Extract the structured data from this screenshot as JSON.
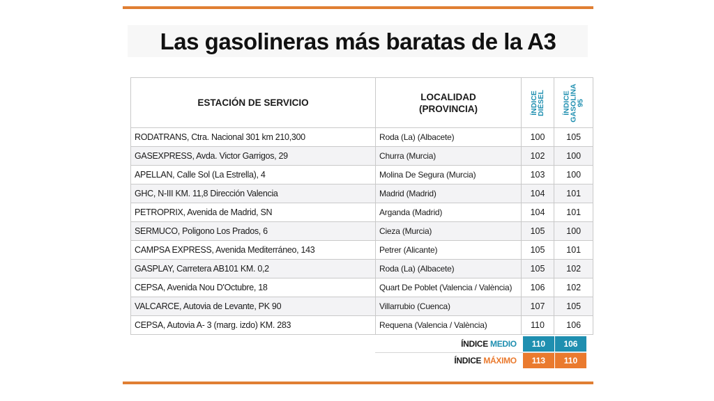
{
  "title": "Las gasolineras más baratas de la A3",
  "colors": {
    "rule": "#e07f33",
    "blue_accent": "#1f8fb0",
    "orange_accent": "#ea7a2e"
  },
  "table": {
    "headers": {
      "station": "ESTACIÓN DE SERVICIO",
      "location_line1": "LOCALIDAD",
      "location_line2": "(PROVINCIA)",
      "diesel_line1": "ÍNDICE",
      "diesel_line2": "DIÉSEL",
      "gasolina_line1": "ÍNDICE",
      "gasolina_line2": "GASOLINA",
      "gasolina_line3": "95"
    },
    "rows": [
      {
        "station": "RODATRANS, Ctra. Nacional 301 km 210,300",
        "location": "Roda (La) (Albacete)",
        "diesel": "100",
        "gasolina": "105"
      },
      {
        "station": "GASEXPRESS, Avda. Victor Garrigos, 29",
        "location": "Churra (Murcia)",
        "diesel": "102",
        "gasolina": "100"
      },
      {
        "station": "APELLAN, Calle Sol (La Estrella), 4",
        "location": "Molina De Segura (Murcia)",
        "diesel": "103",
        "gasolina": "100"
      },
      {
        "station": "GHC, N-III KM. 11,8 Dirección Valencia",
        "location": "Madrid (Madrid)",
        "diesel": "104",
        "gasolina": "101"
      },
      {
        "station": "PETROPRIX, Avenida de Madrid, SN",
        "location": "Arganda (Madrid)",
        "diesel": "104",
        "gasolina": "101"
      },
      {
        "station": "SERMUCO, Poligono Los Prados, 6",
        "location": "Cieza (Murcia)",
        "diesel": "105",
        "gasolina": "100"
      },
      {
        "station": "CAMPSA EXPRESS, Avenida Mediterráneo, 143",
        "location": "Petrer (Alicante)",
        "diesel": "105",
        "gasolina": "101"
      },
      {
        "station": "GASPLAY, Carretera AB101 KM. 0,2",
        "location": "Roda (La) (Albacete)",
        "diesel": "105",
        "gasolina": "102"
      },
      {
        "station": "CEPSA, Avenida Nou D'Octubre, 18",
        "location": "Quart De Poblet (Valencia / València)",
        "diesel": "106",
        "gasolina": "102"
      },
      {
        "station": "VALCARCE, Autovia de Levante, PK 90",
        "location": "Villarrubio (Cuenca)",
        "diesel": "107",
        "gasolina": "105"
      },
      {
        "station": "CEPSA, Autovia A- 3 (marg. izdo) KM. 283",
        "location": "Requena (Valencia / València)",
        "diesel": "110",
        "gasolina": "106"
      }
    ]
  },
  "summary": {
    "medio": {
      "label_prefix": "ÍNDICE",
      "label_accent": "MEDIO",
      "diesel": "110",
      "gasolina": "106"
    },
    "maximo": {
      "label_prefix": "ÍNDICE",
      "label_accent": "MÁXIMO",
      "diesel": "113",
      "gasolina": "110"
    }
  }
}
